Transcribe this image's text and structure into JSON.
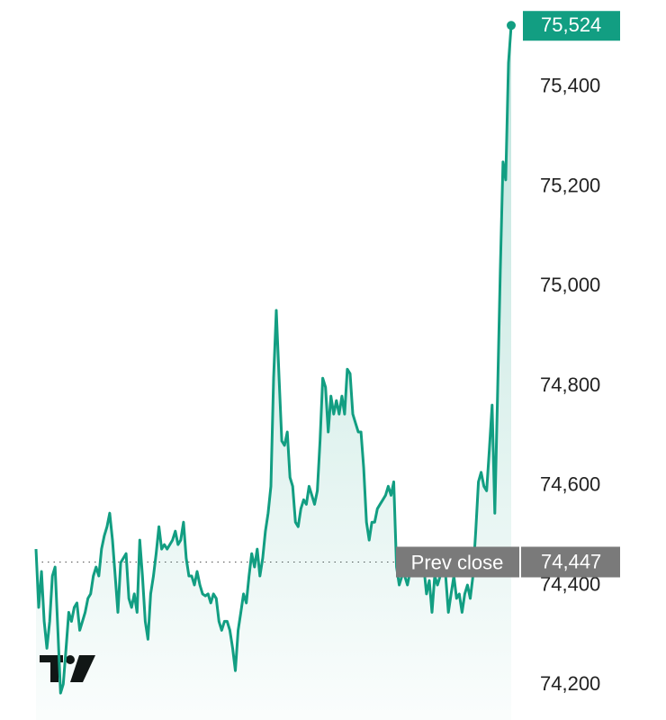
{
  "chart_data": {
    "type": "line",
    "values": [
      74473,
      74356,
      74428,
      74328,
      74274,
      74328,
      74419,
      74437,
      74310,
      74184,
      74202,
      74274,
      74346,
      74328,
      74356,
      74365,
      74310,
      74328,
      74346,
      74374,
      74383,
      74419,
      74437,
      74419,
      74473,
      74500,
      74518,
      74545,
      74491,
      74419,
      74346,
      74446,
      74455,
      74464,
      74374,
      74356,
      74383,
      74346,
      74491,
      74419,
      74328,
      74292,
      74383,
      74419,
      74464,
      74518,
      74473,
      74482,
      74473,
      74482,
      74491,
      74509,
      74482,
      74491,
      74527,
      74455,
      74419,
      74419,
      74401,
      74428,
      74401,
      74383,
      74379,
      74383,
      74365,
      74383,
      74374,
      74328,
      74310,
      74328,
      74328,
      74310,
      74274,
      74229,
      74310,
      74346,
      74383,
      74365,
      74419,
      74464,
      74437,
      74473,
      74419,
      74455,
      74509,
      74545,
      74599,
      74816,
      74952,
      74816,
      74690,
      74681,
      74708,
      74617,
      74599,
      74527,
      74518,
      74554,
      74572,
      74563,
      74599,
      74581,
      74563,
      74590,
      74690,
      74816,
      74798,
      74708,
      74780,
      74744,
      74771,
      74744,
      74780,
      74744,
      74834,
      74825,
      74744,
      74726,
      74708,
      74708,
      74636,
      74527,
      74491,
      74527,
      74527,
      74554,
      74563,
      74572,
      74581,
      74599,
      74581,
      74608,
      74437,
      74401,
      74419,
      74419,
      74401,
      74428,
      74446,
      74419,
      74419,
      74428,
      74437,
      74383,
      74410,
      74346,
      74419,
      74401,
      74419,
      74455,
      74419,
      74346,
      74383,
      74419,
      74374,
      74383,
      74346,
      74383,
      74401,
      74374,
      74419,
      74509,
      74608,
      74627,
      74599,
      74590,
      74672,
      74762,
      74545,
      74780,
      75033,
      75250,
      75214,
      75449,
      75524
    ],
    "color": "#129e82",
    "ylim": [
      74130,
      75575
    ],
    "yticks": [
      {
        "value": 74200,
        "label": "74,200"
      },
      {
        "value": 74400,
        "label": "74,400"
      },
      {
        "value": 74600,
        "label": "74,600"
      },
      {
        "value": 74800,
        "label": "74,800"
      },
      {
        "value": 75000,
        "label": "75,000"
      },
      {
        "value": 75200,
        "label": "75,200"
      },
      {
        "value": 75400,
        "label": "75,400"
      }
    ],
    "current": {
      "value": 75524,
      "label": "75,524"
    },
    "prev_close": {
      "name": "Prev close",
      "value": 74447,
      "label": "74,447"
    }
  }
}
